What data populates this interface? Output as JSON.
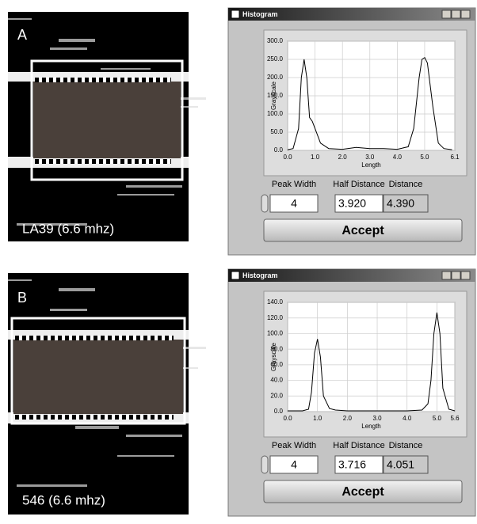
{
  "panels": [
    {
      "label": "A",
      "caption": "LA39 (6.6 mhz)",
      "window": {
        "title": "Histogram",
        "chart": {
          "type": "line",
          "y_label": "Grayscale",
          "x_label": "Length",
          "x": [
            0,
            0.2,
            0.4,
            0.5,
            0.6,
            0.7,
            0.8,
            0.9,
            1.0,
            1.2,
            1.5,
            2.0,
            2.5,
            3.0,
            3.5,
            4.0,
            4.4,
            4.6,
            4.8,
            4.9,
            5.0,
            5.1,
            5.3,
            5.5,
            5.7,
            6.0
          ],
          "values": [
            2,
            5,
            60,
            200,
            250,
            200,
            90,
            80,
            60,
            20,
            5,
            3,
            8,
            5,
            5,
            3,
            10,
            60,
            200,
            250,
            255,
            240,
            120,
            20,
            5,
            2
          ],
          "xlim": [
            0,
            6.1
          ],
          "ylim": [
            0,
            300
          ],
          "xticks": [
            {
              "value": 0,
              "label": "0.0"
            },
            {
              "value": 1,
              "label": "1.0"
            },
            {
              "value": 2,
              "label": "2.0"
            },
            {
              "value": 3,
              "label": "3.0"
            },
            {
              "value": 4,
              "label": "4.0"
            },
            {
              "value": 5,
              "label": "5.0"
            },
            6.1
          ],
          "yticks": [
            {
              "value": 0,
              "label": "0.0"
            },
            {
              "value": 50,
              "label": "50.0"
            },
            {
              "value": 100,
              "label": "100.0"
            },
            {
              "value": 150,
              "label": "150.0"
            },
            {
              "value": 200,
              "label": "200.0"
            },
            {
              "value": 250,
              "label": "250.0"
            },
            {
              "value": 300,
              "label": "300.0"
            }
          ]
        },
        "fields": [
          {
            "label": "Peak Width",
            "value": "4"
          },
          {
            "label": "Half Distance",
            "value": "3.920"
          },
          {
            "label": "Distance",
            "value": "4.390"
          }
        ],
        "button": "Accept"
      }
    },
    {
      "label": "B",
      "caption": "546 (6.6 mhz)",
      "window": {
        "title": "Histogram",
        "chart": {
          "type": "line",
          "y_label": "Grayscale",
          "x_label": "Length",
          "x": [
            0,
            0.5,
            0.7,
            0.8,
            0.9,
            1.0,
            1.1,
            1.2,
            1.4,
            1.6,
            2.0,
            3.0,
            4.0,
            4.5,
            4.7,
            4.8,
            4.9,
            5.0,
            5.1,
            5.2,
            5.4,
            5.6
          ],
          "values": [
            1,
            1,
            3,
            25,
            75,
            93,
            70,
            20,
            4,
            2,
            1,
            1,
            1,
            2,
            10,
            40,
            100,
            127,
            100,
            30,
            3,
            1
          ],
          "xlim": [
            0,
            5.6
          ],
          "ylim": [
            0,
            140
          ],
          "xticks": [
            {
              "value": 0,
              "label": "0.0"
            },
            {
              "value": 1,
              "label": "1.0"
            },
            {
              "value": 2,
              "label": "2.0"
            },
            {
              "value": 3,
              "label": "3.0"
            },
            {
              "value": 4,
              "label": "4.0"
            },
            {
              "value": 5,
              "label": "5.0"
            },
            5.6
          ],
          "yticks": [
            {
              "value": 0,
              "label": "0.0"
            },
            {
              "value": 20,
              "label": "20.0"
            },
            {
              "value": 40,
              "label": "40.0"
            },
            {
              "value": 60,
              "label": "60.0"
            },
            {
              "value": 80,
              "label": "80.0"
            },
            {
              "value": 100,
              "label": "100.0"
            },
            {
              "value": 120,
              "label": "120.0"
            },
            {
              "value": 140,
              "label": "140.0"
            }
          ]
        },
        "fields": [
          {
            "label": "Peak Width",
            "value": "4"
          },
          {
            "label": "Half Distance",
            "value": "3.716"
          },
          {
            "label": "Distance",
            "value": "4.051"
          }
        ],
        "button": "Accept"
      }
    }
  ]
}
